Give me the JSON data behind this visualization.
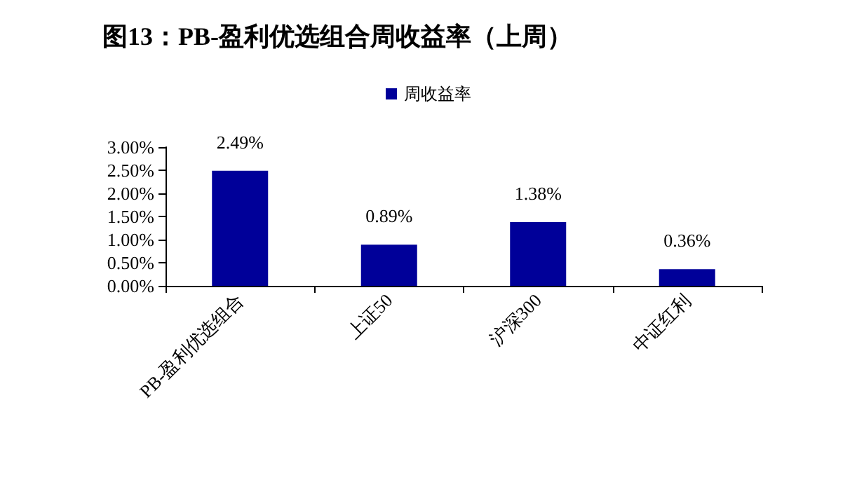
{
  "chart_data": {
    "type": "bar",
    "title": "图13：PB-盈利优选组合周收益率（上周）",
    "categories": [
      "PB-盈利优选组合",
      "上证50",
      "沪深300",
      "中证红利"
    ],
    "series": [
      {
        "name": "周收益率",
        "color": "#000099",
        "values": [
          2.49,
          0.89,
          1.38,
          0.36
        ],
        "value_labels": [
          "2.49%",
          "0.89%",
          "1.38%",
          "0.36%"
        ]
      }
    ],
    "ylim": [
      0,
      3
    ],
    "yticks": [
      {
        "value": 0,
        "label": "0.00%"
      },
      {
        "value": 0.5,
        "label": "0.50%"
      },
      {
        "value": 1,
        "label": "1.00%"
      },
      {
        "value": 1.5,
        "label": "1.50%"
      },
      {
        "value": 2,
        "label": "2.00%"
      },
      {
        "value": 2.5,
        "label": "2.50%"
      },
      {
        "value": 3,
        "label": "3.00%"
      }
    ],
    "grid": false,
    "legend": "top"
  }
}
